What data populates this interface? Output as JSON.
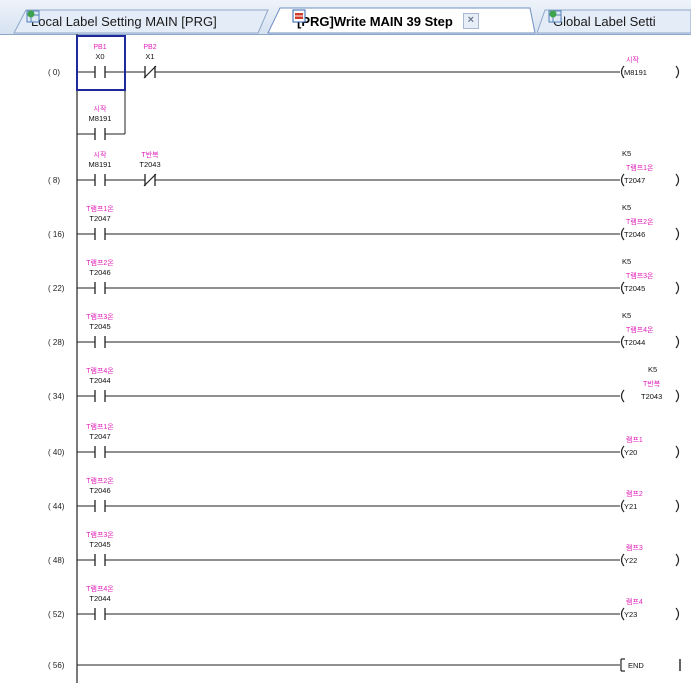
{
  "tabs": [
    {
      "label": "Local Label Setting MAIN [PRG]",
      "icon": "global-label-icon",
      "active": false
    },
    {
      "label": "[PRG]Write MAIN 39 Step",
      "icon": "ladder-program-icon",
      "active": true
    },
    {
      "label": "Global Label Setti",
      "icon": "global-label-icon",
      "active": false
    }
  ],
  "close_glyph": "×",
  "rungs": [
    {
      "step": "( 0)",
      "contacts": [
        {
          "device": "X0",
          "comment": "PB1",
          "type": "NO"
        },
        {
          "device": "X1",
          "comment": "PB2",
          "type": "NC"
        }
      ],
      "branch": {
        "device": "M8191",
        "comment": "시작",
        "type": "NO"
      },
      "coil": {
        "device": "M8191",
        "comment": "시작",
        "kvalue": ""
      }
    },
    {
      "step": "( 8)",
      "contacts": [
        {
          "device": "M8191",
          "comment": "시작",
          "type": "NO"
        },
        {
          "device": "T2043",
          "comment": "T반복",
          "type": "NC"
        }
      ],
      "coil": {
        "device": "T2047",
        "comment": "T램프1온",
        "kvalue": "K5"
      }
    },
    {
      "step": "( 16)",
      "contacts": [
        {
          "device": "T2047",
          "comment": "T램프1온",
          "type": "NO"
        }
      ],
      "coil": {
        "device": "T2046",
        "comment": "T램프2온",
        "kvalue": "K5"
      }
    },
    {
      "step": "( 22)",
      "contacts": [
        {
          "device": "T2046",
          "comment": "T램프2온",
          "type": "NO"
        }
      ],
      "coil": {
        "device": "T2045",
        "comment": "T램프3온",
        "kvalue": "K5"
      }
    },
    {
      "step": "( 28)",
      "contacts": [
        {
          "device": "T2045",
          "comment": "T램프3온",
          "type": "NO"
        }
      ],
      "coil": {
        "device": "T2044",
        "comment": "T램프4온",
        "kvalue": "K5"
      }
    },
    {
      "step": "( 34)",
      "contacts": [
        {
          "device": "T2044",
          "comment": "T램프4온",
          "type": "NO"
        }
      ],
      "coil": {
        "device": "T2043",
        "comment": "T반복",
        "kvalue": "K5"
      }
    },
    {
      "step": "( 40)",
      "contacts": [
        {
          "device": "T2047",
          "comment": "T램프1온",
          "type": "NO"
        }
      ],
      "coil": {
        "device": "Y20",
        "comment": "램프1",
        "kvalue": ""
      }
    },
    {
      "step": "( 44)",
      "contacts": [
        {
          "device": "T2046",
          "comment": "T램프2온",
          "type": "NO"
        }
      ],
      "coil": {
        "device": "Y21",
        "comment": "램프2",
        "kvalue": ""
      }
    },
    {
      "step": "( 48)",
      "contacts": [
        {
          "device": "T2045",
          "comment": "T램프3온",
          "type": "NO"
        }
      ],
      "coil": {
        "device": "Y22",
        "comment": "램프3",
        "kvalue": ""
      }
    },
    {
      "step": "( 52)",
      "contacts": [
        {
          "device": "T2044",
          "comment": "T램프4온",
          "type": "NO"
        }
      ],
      "coil": {
        "device": "Y23",
        "comment": "램프4",
        "kvalue": ""
      }
    },
    {
      "step": "( 56)",
      "contacts": [],
      "coil": {
        "device": "END",
        "comment": "",
        "kvalue": "",
        "type": "instruction"
      }
    }
  ],
  "colors": {
    "comment": "#e020b8",
    "device": "#111111",
    "cursor": "#1f2a9a",
    "line": "#222222"
  }
}
